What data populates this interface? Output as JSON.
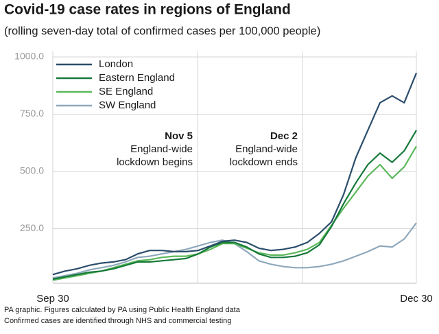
{
  "chart_data": {
    "type": "line",
    "title": "Covid-19 case rates in regions of England",
    "subtitle": "(rolling seven-day total of confirmed cases per 100,000 people)",
    "categories": [
      "Sep 30",
      null,
      null,
      null,
      null,
      null,
      null,
      null,
      null,
      null,
      null,
      null,
      null,
      null,
      null,
      null,
      null,
      null,
      null,
      null,
      null,
      null,
      null,
      null,
      null,
      null,
      null,
      null,
      null,
      null,
      "Dec 30"
    ],
    "series": [
      {
        "name": "London",
        "color": "#2b4d6b",
        "values": [
          50,
          65,
          75,
          90,
          100,
          105,
          115,
          140,
          155,
          155,
          150,
          150,
          155,
          175,
          195,
          200,
          190,
          165,
          155,
          160,
          170,
          190,
          230,
          280,
          400,
          560,
          680,
          800,
          830,
          800,
          930
        ]
      },
      {
        "name": "Eastern England",
        "color": "#16793a",
        "values": [
          30,
          40,
          50,
          60,
          65,
          75,
          90,
          105,
          105,
          110,
          115,
          120,
          140,
          170,
          190,
          190,
          170,
          140,
          125,
          125,
          130,
          145,
          180,
          260,
          360,
          450,
          530,
          580,
          540,
          590,
          680
        ]
      },
      {
        "name": "SE England",
        "color": "#5bb85a",
        "values": [
          25,
          35,
          45,
          55,
          65,
          80,
          95,
          110,
          115,
          125,
          130,
          130,
          140,
          160,
          185,
          185,
          165,
          145,
          135,
          135,
          145,
          160,
          190,
          265,
          340,
          410,
          480,
          530,
          470,
          520,
          610
        ]
      },
      {
        "name": "SW England",
        "color": "#8ea8bc",
        "values": [
          35,
          45,
          55,
          70,
          80,
          90,
          105,
          125,
          130,
          140,
          150,
          160,
          175,
          190,
          200,
          185,
          150,
          110,
          95,
          85,
          80,
          80,
          85,
          95,
          110,
          130,
          150,
          175,
          170,
          205,
          275
        ]
      }
    ],
    "ylim": [
      0,
      1000
    ],
    "yticks": [
      {
        "value": 250,
        "label": "250.0"
      },
      {
        "value": 500,
        "label": "500.0"
      },
      {
        "value": 750,
        "label": "750.0"
      },
      {
        "value": 1000,
        "label": "1000.0"
      }
    ],
    "grid": true,
    "legend": "upper left",
    "annotations": [
      {
        "title": "Nov 5",
        "lines": [
          "England-wide",
          "lockdown begins"
        ]
      },
      {
        "title": "Dec 2",
        "lines": [
          "England-wide",
          "lockdown ends"
        ]
      }
    ],
    "notes": [
      "PA graphic. Figures calculated by PA using Public Health England data",
      "Confirmed cases are identified through NHS and commercial testing"
    ]
  }
}
